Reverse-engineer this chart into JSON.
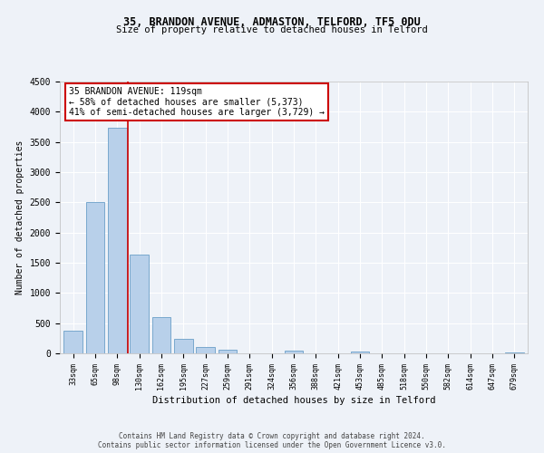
{
  "title1": "35, BRANDON AVENUE, ADMASTON, TELFORD, TF5 0DU",
  "title2": "Size of property relative to detached houses in Telford",
  "xlabel": "Distribution of detached houses by size in Telford",
  "ylabel": "Number of detached properties",
  "bar_labels": [
    "33sqm",
    "65sqm",
    "98sqm",
    "130sqm",
    "162sqm",
    "195sqm",
    "227sqm",
    "259sqm",
    "291sqm",
    "324sqm",
    "356sqm",
    "388sqm",
    "421sqm",
    "453sqm",
    "485sqm",
    "518sqm",
    "550sqm",
    "582sqm",
    "614sqm",
    "647sqm",
    "679sqm"
  ],
  "bar_values": [
    380,
    2500,
    3730,
    1640,
    600,
    240,
    105,
    55,
    0,
    0,
    40,
    0,
    0,
    30,
    0,
    0,
    0,
    0,
    0,
    0,
    20
  ],
  "bar_color": "#b8d0ea",
  "bar_edge_color": "#6a9fc8",
  "annotation_title": "35 BRANDON AVENUE: 119sqm",
  "annotation_line1": "← 58% of detached houses are smaller (5,373)",
  "annotation_line2": "41% of semi-detached houses are larger (3,729) →",
  "annotation_box_color": "#ffffff",
  "annotation_box_edge": "#cc0000",
  "vline_color": "#cc0000",
  "ylim": [
    0,
    4500
  ],
  "yticks": [
    0,
    500,
    1000,
    1500,
    2000,
    2500,
    3000,
    3500,
    4000,
    4500
  ],
  "footer1": "Contains HM Land Registry data © Crown copyright and database right 2024.",
  "footer2": "Contains public sector information licensed under the Open Government Licence v3.0.",
  "bg_color": "#eef2f8",
  "grid_color": "#ffffff"
}
